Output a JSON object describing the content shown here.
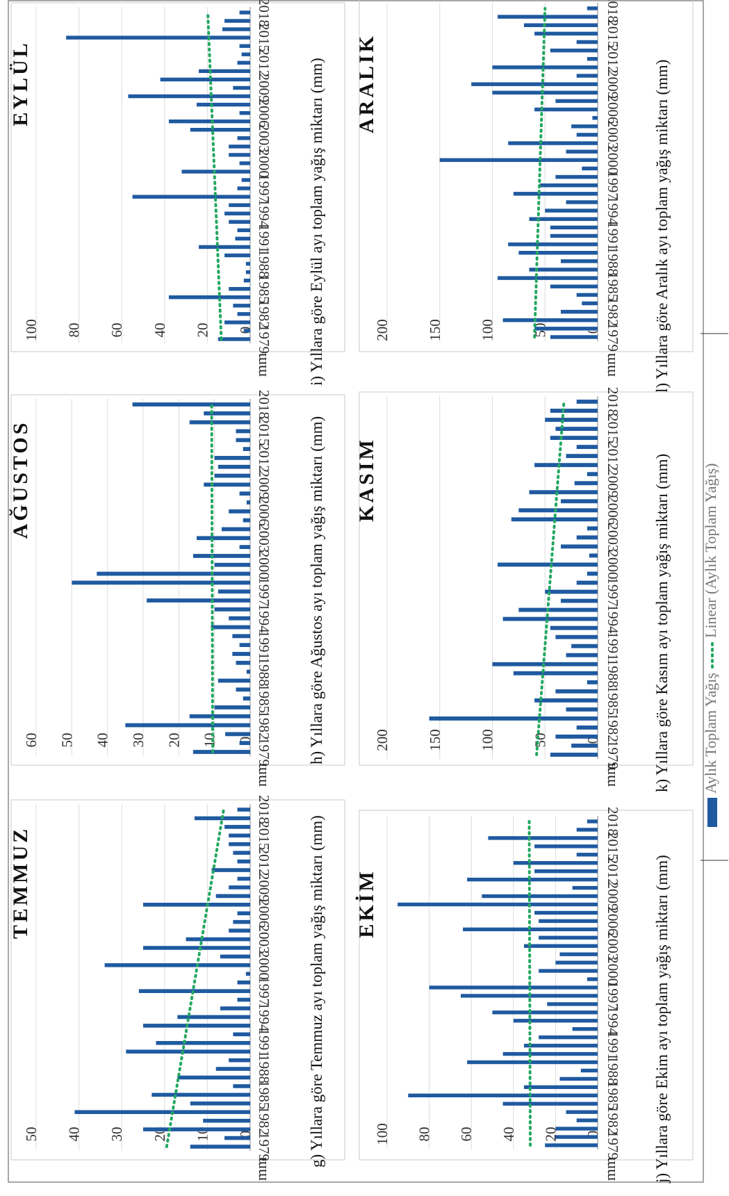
{
  "legend": {
    "bar_label": "Aylık Toplam Yağış",
    "trend_label": "Linear (Aylık Toplam Yağış)",
    "bar_color": "#1f5aa0",
    "trend_color": "#22a860"
  },
  "chart_data": [
    {
      "type": "bar",
      "panel": "g",
      "title": "TEMMUZ",
      "caption": "g) Yıllara göre Temmuz ayı toplam yağış miktarı (mm)",
      "ylabel": "mm",
      "ylim": [
        0,
        50
      ],
      "yticks": [
        0,
        10,
        20,
        30,
        40,
        50
      ],
      "xtick_labels": [
        "1979",
        "1982",
        "1985",
        "1988",
        "1991",
        "1994",
        "1997",
        "2000",
        "2003",
        "2006",
        "2009",
        "2012",
        "2015",
        "2018"
      ],
      "years_first": 1979,
      "values": [
        14,
        6,
        25,
        11,
        41,
        14,
        23,
        4,
        17,
        8,
        5,
        29,
        22,
        4,
        25,
        17,
        7,
        3,
        26,
        3,
        1,
        34,
        7,
        25,
        15,
        5,
        4,
        3,
        25,
        8,
        5,
        3,
        9,
        3,
        4,
        5,
        5,
        6,
        13,
        3
      ],
      "trend": [
        19.5,
        6.2
      ]
    },
    {
      "type": "bar",
      "panel": "h",
      "title": "AĞUSTOS",
      "caption": "h) Yıllara göre Ağustos ayı toplam yağış miktarı (mm)",
      "ylabel": "mm",
      "ylim": [
        0,
        60
      ],
      "yticks": [
        0,
        10,
        20,
        30,
        40,
        50,
        60
      ],
      "xtick_labels": [
        "1979",
        "1982",
        "1985",
        "1988",
        "1991",
        "1994",
        "1997",
        "2000",
        "2003",
        "2006",
        "2009",
        "2012",
        "2015",
        "2018"
      ],
      "years_first": 1979,
      "values": [
        16,
        3,
        7,
        35,
        17,
        10,
        2,
        4,
        9,
        1,
        4,
        5,
        3,
        5,
        11,
        6,
        10,
        29,
        9,
        50,
        43,
        10,
        16,
        3,
        15,
        8,
        2,
        6,
        1,
        3,
        13,
        10,
        9,
        10,
        2,
        4,
        4,
        17,
        13,
        33
      ],
      "trend": [
        10.5,
        10.8
      ]
    },
    {
      "type": "bar",
      "panel": "i",
      "title": "EYLÜL",
      "caption": "i) Yıllara göre Eylül ayı toplam yağış miktarı (mm)",
      "ylabel": "mm",
      "ylim": [
        0,
        100
      ],
      "yticks": [
        0,
        20,
        40,
        60,
        80,
        100
      ],
      "xtick_labels": [
        "1979",
        "1982",
        "1985",
        "1988",
        "1991",
        "1994",
        "1997",
        "2000",
        "2003",
        "2006",
        "2009",
        "2012",
        "2015",
        "2018"
      ],
      "years_first": 1979,
      "values": [
        15,
        3,
        12,
        6,
        8,
        38,
        10,
        3,
        2,
        2,
        12,
        24,
        7,
        6,
        10,
        12,
        10,
        55,
        6,
        4,
        32,
        5,
        10,
        10,
        6,
        28,
        38,
        5,
        25,
        57,
        8,
        42,
        24,
        6,
        4,
        5,
        86,
        13,
        12,
        5
      ],
      "trend": [
        13.5,
        19.8
      ]
    },
    {
      "type": "bar",
      "panel": "j",
      "title": "EKİM",
      "caption": "j) Yıllara göre Ekim ayı toplam yağış miktarı (mm)",
      "ylabel": "mm",
      "ylim": [
        0,
        100
      ],
      "yticks": [
        0,
        20,
        40,
        60,
        80,
        100
      ],
      "xtick_labels": [
        "1979",
        "1982",
        "1985",
        "1988",
        "1991",
        "1994",
        "1997",
        "2000",
        "2003",
        "2006",
        "2009",
        "2012",
        "2015",
        "2018"
      ],
      "years_first": 1979,
      "values": [
        25,
        20,
        20,
        10,
        15,
        45,
        90,
        35,
        18,
        8,
        62,
        45,
        35,
        28,
        12,
        40,
        50,
        24,
        65,
        80,
        5,
        28,
        20,
        18,
        35,
        28,
        64,
        28,
        30,
        95,
        55,
        12,
        62,
        30,
        40,
        10,
        30,
        52,
        10,
        5
      ],
      "trend": [
        32,
        32.5
      ]
    },
    {
      "type": "bar",
      "panel": "k",
      "title": "KASIM",
      "caption": "k) Yıllara göre Kasım ayı toplam yağış miktarı (mm)",
      "ylabel": "mm",
      "ylim": [
        0,
        200
      ],
      "yticks": [
        0,
        50,
        100,
        150,
        200
      ],
      "xtick_labels": [
        "1979",
        "1982",
        "1985",
        "1988",
        "1991",
        "1994",
        "1997",
        "2000",
        "2003",
        "2006",
        "2009",
        "2012",
        "2015",
        "2018"
      ],
      "years_first": 1979,
      "values": [
        45,
        25,
        40,
        20,
        160,
        30,
        60,
        40,
        10,
        80,
        100,
        30,
        25,
        40,
        45,
        90,
        75,
        35,
        50,
        20,
        10,
        95,
        8,
        35,
        20,
        10,
        82,
        75,
        35,
        65,
        22,
        10,
        60,
        30,
        20,
        45,
        40,
        50,
        45,
        20
      ],
      "trend": [
        58,
        32
      ]
    },
    {
      "type": "bar",
      "panel": "l",
      "title": "ARALIK",
      "caption": "l) Yıllara göre Aralık ayı toplam yağış miktarı (mm)",
      "ylabel": "mm",
      "ylim": [
        0,
        200
      ],
      "yticks": [
        0,
        50,
        100,
        150,
        200
      ],
      "xtick_labels": [
        "1979",
        "1982",
        "1985",
        "1988",
        "1991",
        "1994",
        "1997",
        "2000",
        "2003",
        "2006",
        "2009",
        "2012",
        "2015",
        "2018"
      ],
      "years_first": 1979,
      "values": [
        45,
        60,
        90,
        35,
        15,
        20,
        45,
        95,
        65,
        35,
        75,
        85,
        45,
        45,
        65,
        50,
        30,
        80,
        55,
        40,
        15,
        150,
        30,
        85,
        20,
        25,
        5,
        60,
        40,
        100,
        120,
        20,
        100,
        10,
        45,
        20,
        60,
        70,
        95,
        10
      ],
      "trend": [
        60,
        50
      ]
    }
  ]
}
